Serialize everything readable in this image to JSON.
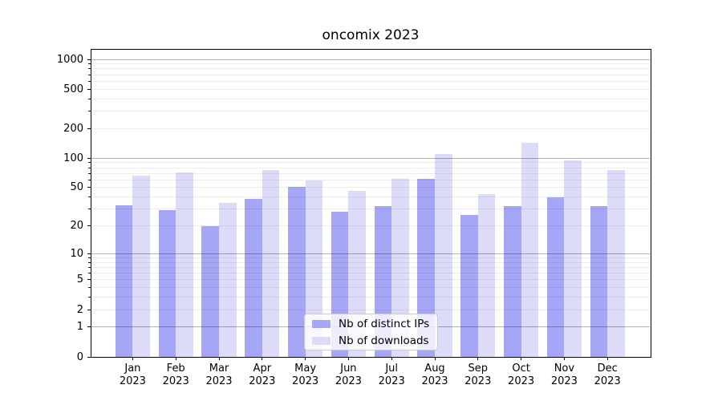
{
  "title": "oncomix 2023",
  "chart_data": {
    "type": "bar",
    "categories": [
      "Jan 2023",
      "Feb 2023",
      "Mar 2023",
      "Apr 2023",
      "May 2023",
      "Jun 2023",
      "Jul 2023",
      "Aug 2023",
      "Sep 2023",
      "Oct 2023",
      "Nov 2023",
      "Dec 2023"
    ],
    "series": [
      {
        "name": "Nb of distinct IPs",
        "color": "#a6a6f6",
        "values": [
          33,
          29,
          20,
          38,
          51,
          28,
          32,
          62,
          26,
          32,
          40,
          32
        ]
      },
      {
        "name": "Nb of downloads",
        "color": "#dcdcf9",
        "values": [
          66,
          71,
          35,
          75,
          59,
          46,
          61,
          111,
          43,
          142,
          95,
          76
        ]
      }
    ],
    "title": "oncomix 2023",
    "xlabel": "",
    "ylabel": "",
    "yscale": "log1p",
    "yticks": [
      0,
      1,
      2,
      5,
      10,
      20,
      50,
      100,
      200,
      500,
      1000
    ],
    "ylim": [
      0,
      1275
    ],
    "grid": "on",
    "legend_position": "lower center"
  },
  "colors": {
    "ips_bar": "#a6a6f6",
    "downloads_bar": "#dcdcf9",
    "major_grid": "#b3b3b3",
    "minor_grid": "#ededed",
    "axis": "#000000",
    "legend_border": "#cccccc"
  }
}
